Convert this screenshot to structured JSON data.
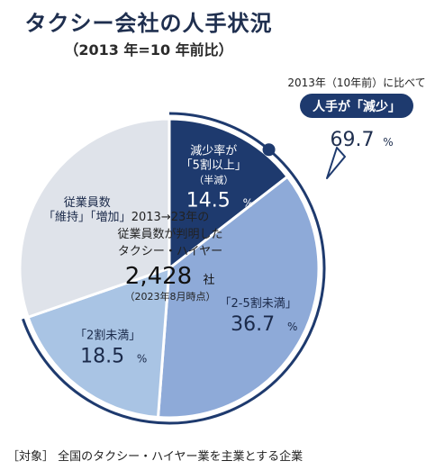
{
  "title": "タクシー会社の人手状況",
  "subtitle": "（2013 年=10 年前比）",
  "footnote": "［対象］ 全国のタクシー・ハイヤー業を主業とする企業",
  "callout": {
    "header": "2013年（10年前）に比べて",
    "badge": "人手が「減少」",
    "value": "69.7",
    "unit": "%"
  },
  "center": {
    "line1": "2013→23年の",
    "line2": "従業員数が判明した",
    "line3": "タクシー・ハイヤー",
    "count": "2,428",
    "count_unit": "社",
    "note": "（2023年8月時点）"
  },
  "colors": {
    "halved": "#1e3a6e",
    "under50": "#8eaad8",
    "under20": "#a9c4e4",
    "maintain": "#dfe3ea",
    "arc": "#1e3a6e"
  },
  "chart_data": {
    "type": "pie",
    "title": "タクシー会社の人手状況",
    "unit": "%",
    "slices": [
      {
        "key": "halved",
        "label_lines": [
          "減少率が",
          "「5割以上」",
          "（半減）"
        ],
        "value": 14.5,
        "value_text": "14.5",
        "unit": "%"
      },
      {
        "key": "under50",
        "label_lines": [
          "「2-5割未満」"
        ],
        "value": 36.7,
        "value_text": "36.7",
        "unit": "%"
      },
      {
        "key": "under20",
        "label_lines": [
          "「2割未満」"
        ],
        "value": 18.5,
        "value_text": "18.5",
        "unit": "%"
      },
      {
        "key": "maintain",
        "label_lines": [
          "従業員数",
          "「維持」「増加」"
        ],
        "value": 30.3,
        "value_text": "",
        "unit": ""
      }
    ],
    "decrease_total": 69.7
  }
}
